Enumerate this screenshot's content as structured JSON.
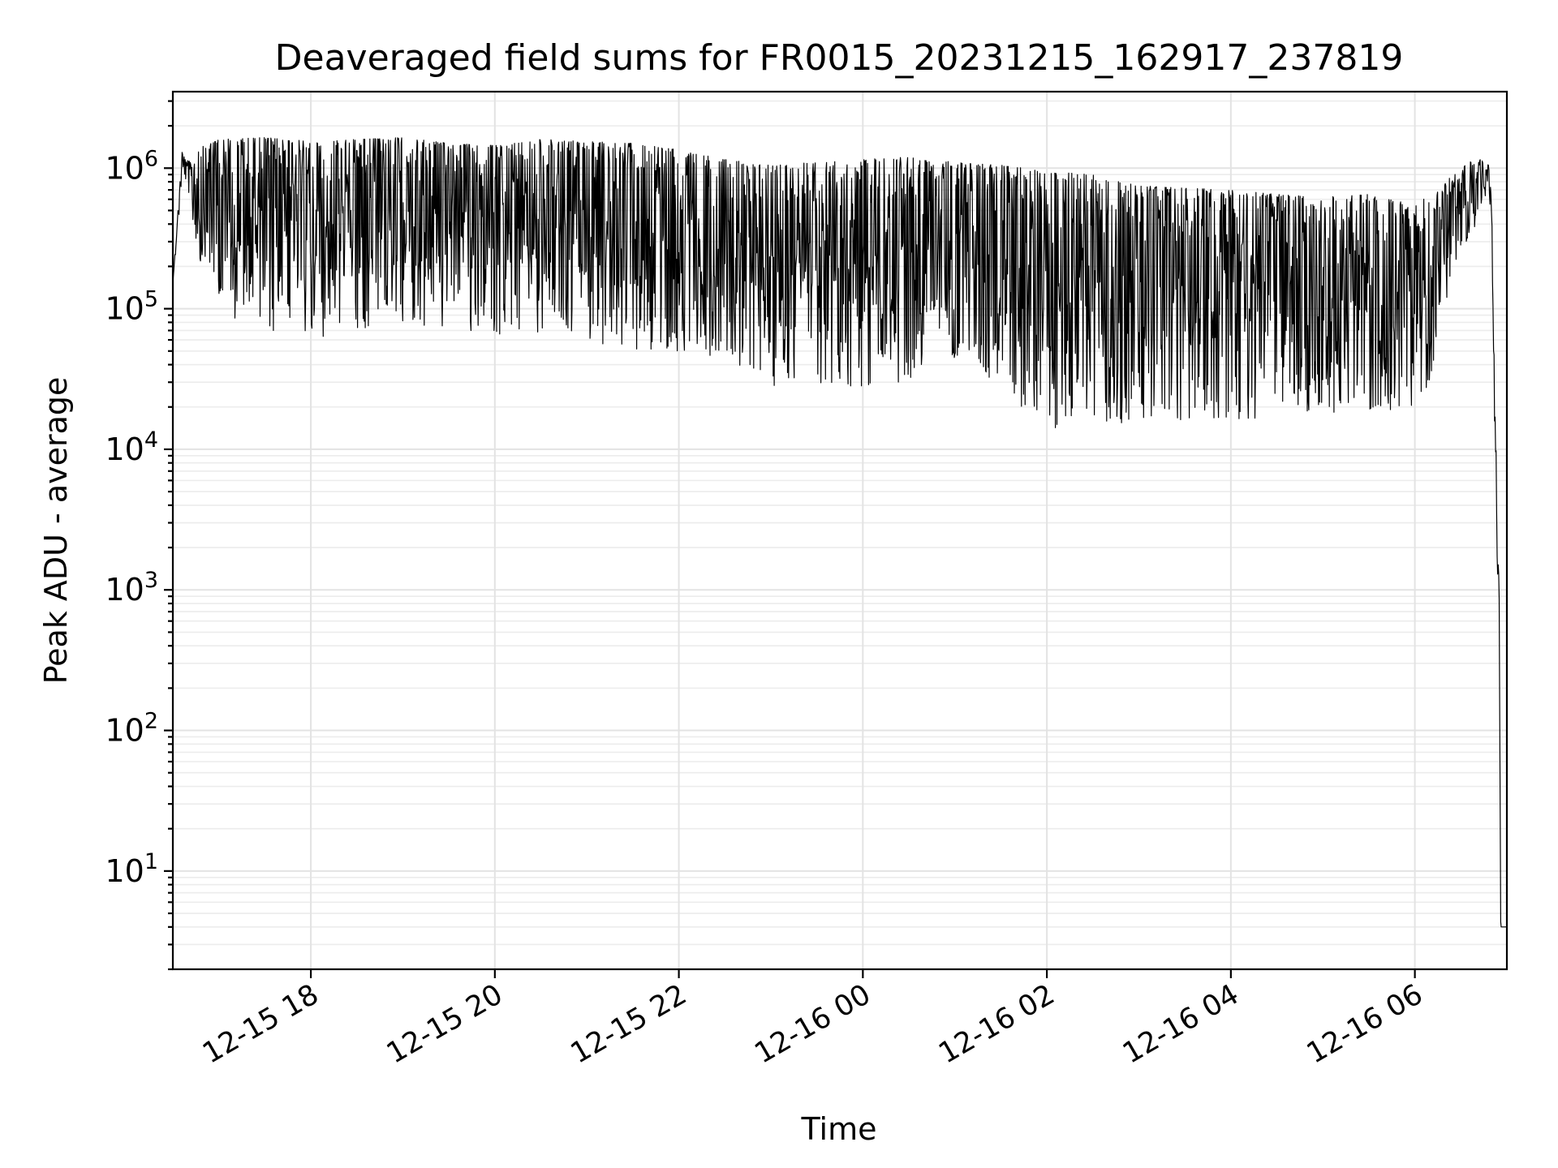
{
  "chart_data": {
    "type": "line",
    "title": "Deaveraged field sums for FR0015_20231215_162917_237819",
    "xlabel": "Time",
    "ylabel": "Peak ADU - average",
    "yscale": "log",
    "ylim": [
      2,
      3500000
    ],
    "xlim": [
      "2023-12-15 16:30",
      "2023-12-16 07:00"
    ],
    "grid": true,
    "line_color": "#000000",
    "xticks": [
      {
        "t": "2023-12-15 18:00",
        "label": "12-15 18"
      },
      {
        "t": "2023-12-15 20:00",
        "label": "12-15 20"
      },
      {
        "t": "2023-12-15 22:00",
        "label": "12-15 22"
      },
      {
        "t": "2023-12-16 00:00",
        "label": "12-16 00"
      },
      {
        "t": "2023-12-16 02:00",
        "label": "12-16 02"
      },
      {
        "t": "2023-12-16 04:00",
        "label": "12-16 04"
      },
      {
        "t": "2023-12-16 06:00",
        "label": "12-16 06"
      }
    ],
    "yticks": [
      {
        "base": "10",
        "exp": "1",
        "value": 10
      },
      {
        "base": "10",
        "exp": "2",
        "value": 100
      },
      {
        "base": "10",
        "exp": "3",
        "value": 1000
      },
      {
        "base": "10",
        "exp": "4",
        "value": 10000
      },
      {
        "base": "10",
        "exp": "5",
        "value": 100000
      },
      {
        "base": "10",
        "exp": "6",
        "value": 1000000
      }
    ],
    "series": [
      {
        "x": [
          "2023-12-15 16:30",
          "2023-12-15 16:36",
          "2023-12-15 16:42",
          "2023-12-15 16:48",
          "2023-12-15 17:00",
          "2023-12-15 17:30",
          "2023-12-15 18:00",
          "2023-12-15 18:30",
          "2023-12-15 19:00",
          "2023-12-15 19:30",
          "2023-12-15 20:00",
          "2023-12-15 20:30",
          "2023-12-15 21:00",
          "2023-12-15 21:30",
          "2023-12-15 22:00",
          "2023-12-15 22:30",
          "2023-12-15 23:00",
          "2023-12-15 23:30",
          "2023-12-16 00:00",
          "2023-12-16 00:30",
          "2023-12-16 01:00",
          "2023-12-16 01:30",
          "2023-12-16 02:00",
          "2023-12-16 02:30",
          "2023-12-16 03:00",
          "2023-12-16 03:30",
          "2023-12-16 04:00",
          "2023-12-16 04:30",
          "2023-12-16 05:00",
          "2023-12-16 05:30",
          "2023-12-16 06:00",
          "2023-12-16 06:10",
          "2023-12-16 06:25",
          "2023-12-16 06:40",
          "2023-12-16 06:48",
          "2023-12-16 06:50",
          "2023-12-16 06:52",
          "2023-12-16 06:53",
          "2023-12-16 06:54",
          "2023-12-16 06:55",
          "2023-12-16 06:56",
          "2023-12-16 07:00"
        ],
        "upper": [
          150000,
          1300000,
          1100000,
          1400000,
          1600000,
          1650000,
          1550000,
          1600000,
          1650000,
          1500000,
          1450000,
          1600000,
          1550000,
          1500000,
          1350000,
          1150000,
          1050000,
          1100000,
          1150000,
          1200000,
          1100000,
          1050000,
          950000,
          900000,
          750000,
          720000,
          700000,
          650000,
          620000,
          650000,
          550000,
          650000,
          900000,
          1200000,
          1050000,
          600000,
          30000,
          12000,
          3000,
          900,
          4,
          4
        ],
        "lower": [
          150000,
          800000,
          500000,
          200000,
          90000,
          70000,
          60000,
          70000,
          80000,
          70000,
          65000,
          60000,
          55000,
          50000,
          50000,
          45000,
          28000,
          28000,
          27000,
          30000,
          45000,
          22000,
          14000,
          15000,
          15000,
          16000,
          16000,
          17000,
          18000,
          18000,
          20000,
          30000,
          200000,
          400000,
          700000,
          400000,
          15000,
          3000,
          900,
          300,
          4,
          4
        ]
      }
    ]
  }
}
